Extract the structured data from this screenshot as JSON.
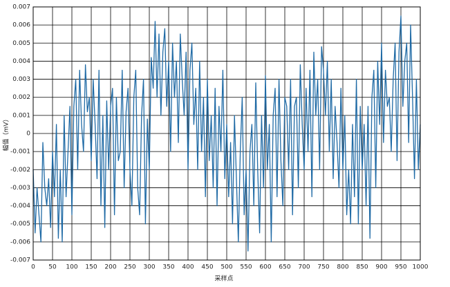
{
  "chart_data": {
    "type": "line",
    "xlabel": "采样点",
    "ylabel": "幅值（mV）",
    "x": [
      0,
      5,
      10,
      15,
      20,
      25,
      30,
      35,
      40,
      45,
      50,
      55,
      60,
      65,
      70,
      75,
      80,
      85,
      90,
      95,
      100,
      105,
      110,
      115,
      120,
      125,
      130,
      135,
      140,
      145,
      150,
      155,
      160,
      165,
      170,
      175,
      180,
      185,
      190,
      195,
      200,
      205,
      210,
      215,
      220,
      225,
      230,
      235,
      240,
      245,
      250,
      255,
      260,
      265,
      270,
      275,
      280,
      285,
      290,
      295,
      300,
      305,
      310,
      315,
      320,
      325,
      330,
      335,
      340,
      345,
      350,
      355,
      360,
      365,
      370,
      375,
      380,
      385,
      390,
      395,
      400,
      405,
      410,
      415,
      420,
      425,
      430,
      435,
      440,
      445,
      450,
      455,
      460,
      465,
      470,
      475,
      480,
      485,
      490,
      495,
      500,
      505,
      510,
      515,
      520,
      525,
      530,
      535,
      540,
      545,
      550,
      555,
      560,
      565,
      570,
      575,
      580,
      585,
      590,
      595,
      600,
      605,
      610,
      615,
      620,
      625,
      630,
      635,
      640,
      645,
      650,
      655,
      660,
      665,
      670,
      675,
      680,
      685,
      690,
      695,
      700,
      705,
      710,
      715,
      720,
      725,
      730,
      735,
      740,
      745,
      750,
      755,
      760,
      765,
      770,
      775,
      780,
      785,
      790,
      795,
      800,
      805,
      810,
      815,
      820,
      825,
      830,
      835,
      840,
      845,
      850,
      855,
      860,
      865,
      870,
      875,
      880,
      885,
      890,
      895,
      900,
      905,
      910,
      915,
      920,
      925,
      930,
      935,
      940,
      945,
      950,
      955,
      960,
      965,
      970,
      975,
      980,
      985,
      990,
      995,
      1000
    ],
    "series": [
      {
        "color": "#1f6aa5",
        "values": [
          -0.002,
          -0.0055,
          -0.003,
          -0.0045,
          -0.006,
          -0.0005,
          -0.003,
          -0.004,
          -0.0025,
          -0.0052,
          -0.001,
          -0.0035,
          0.0005,
          -0.0058,
          -0.002,
          -0.006,
          0.001,
          -0.0035,
          -0.001,
          0.0015,
          -0.0045,
          0.0015,
          0.003,
          -0.002,
          0.0035,
          0.0005,
          -0.001,
          0.0038,
          0.0012,
          0.002,
          -0.0015,
          0.003,
          0.0005,
          -0.0025,
          0.0035,
          -0.004,
          0.001,
          -0.0052,
          0.0018,
          -0.002,
          0.0015,
          0.0025,
          -0.0045,
          0.002,
          -0.0015,
          -0.001,
          0.0035,
          -0.003,
          0.0012,
          0.0025,
          -0.002,
          -0.004,
          0.002,
          0.0035,
          -0.003,
          -0.0045,
          0.001,
          0.003,
          -0.005,
          0.0008,
          -0.002,
          0.0042,
          0.0025,
          0.0062,
          0.002,
          0.0055,
          0.001,
          0.0045,
          0.0058,
          0.0015,
          0.004,
          -0.001,
          0.005,
          0.002,
          0.004,
          -0.0005,
          0.0055,
          0.003,
          0.001,
          0.0045,
          -0.002,
          0.0035,
          0.005,
          0.0005,
          0.0025,
          -0.002,
          0.004,
          -0.001,
          0.002,
          -0.0035,
          0.003,
          -0.0015,
          0.001,
          -0.003,
          0.0025,
          -0.004,
          0.0015,
          -0.001,
          0.0035,
          -0.0025,
          0.0005,
          -0.0035,
          -0.0005,
          -0.005,
          0.001,
          -0.0025,
          -0.006,
          -0.001,
          0.002,
          -0.0045,
          -0.002,
          -0.0065,
          -0.001,
          0.0005,
          -0.004,
          0.0028,
          -0.002,
          -0.0055,
          0.001,
          -0.003,
          0.0032,
          -0.002,
          0.0005,
          -0.006,
          0.001,
          0.0025,
          -0.0035,
          0.003,
          -0.0015,
          -0.004,
          0.002,
          0.0015,
          -0.002,
          0.003,
          -0.0045,
          0.0015,
          0.002,
          -0.003,
          0.0038,
          0.0005,
          -0.002,
          0.0025,
          -0.001,
          0.0035,
          -0.0035,
          0.0045,
          0.001,
          0.003,
          -0.002,
          0.0048,
          0.0035,
          0.001,
          0.004,
          -0.001,
          0.003,
          -0.0025,
          0.0015,
          -0.0005,
          -0.003,
          0.0025,
          -0.002,
          0.001,
          -0.0045,
          -0.002,
          -0.005,
          0.0005,
          -0.0035,
          0.003,
          -0.005,
          0.0015,
          -0.002,
          0.0005,
          -0.004,
          0.0015,
          -0.0058,
          0.002,
          0.0035,
          -0.003,
          0.004,
          0.0005,
          0.005,
          -0.0005,
          0.0035,
          0.0015,
          0.002,
          -0.001,
          0.003,
          0.005,
          -0.0015,
          0.0045,
          0.0065,
          0.0015,
          0.004,
          0.005,
          -0.0005,
          0.006,
          0.002,
          -0.0025,
          0.003,
          -0.002,
          0.0005
        ]
      }
    ],
    "xlim": [
      0,
      1000
    ],
    "xticks": [
      0,
      50,
      100,
      150,
      200,
      250,
      300,
      350,
      400,
      450,
      500,
      550,
      600,
      650,
      700,
      750,
      800,
      850,
      900,
      950,
      1000
    ],
    "ylim": [
      -0.007,
      0.007
    ],
    "yticks": [
      -0.007,
      -0.006,
      -0.005,
      -0.004,
      -0.003,
      -0.002,
      -0.001,
      0,
      0.001,
      0.002,
      0.003,
      0.004,
      0.005,
      0.006,
      0.007
    ],
    "grid": true
  }
}
